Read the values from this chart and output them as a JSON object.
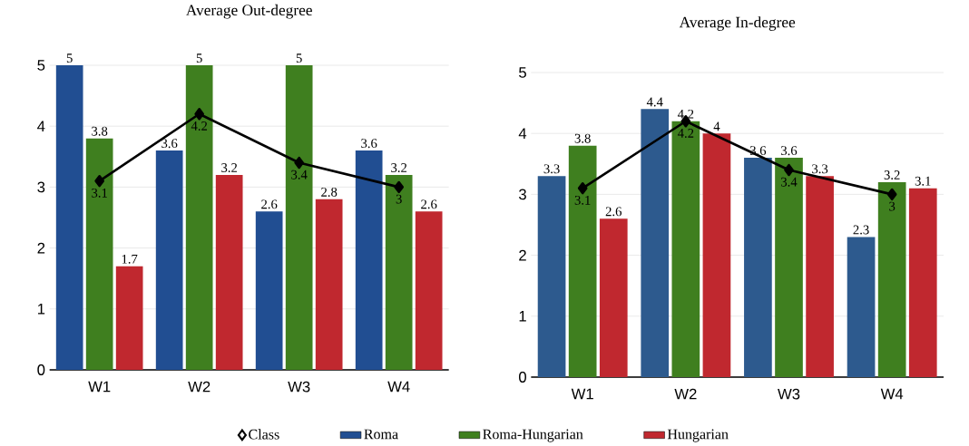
{
  "chart_data": [
    {
      "type": "bar",
      "title": "Average Out-degree",
      "categories": [
        "W1",
        "W2",
        "W3",
        "W4"
      ],
      "series": [
        {
          "name": "Class",
          "type": "line",
          "marker": "diamond",
          "color": "#000000",
          "values": [
            3.1,
            4.2,
            3.4,
            3
          ]
        },
        {
          "name": "Roma",
          "color": "#214e92",
          "values": [
            5,
            3.6,
            2.6,
            3.6
          ]
        },
        {
          "name": "Roma-Hungarian",
          "color": "#3f7f1f",
          "values": [
            3.8,
            5,
            5,
            3.2
          ]
        },
        {
          "name": "Hungarian",
          "color": "#c0282f",
          "values": [
            1.7,
            3.2,
            2.8,
            2.6
          ]
        }
      ],
      "ylim": [
        0,
        5
      ],
      "yticks": [
        0,
        1,
        2,
        3,
        4,
        5
      ],
      "grid": "y",
      "legend": "bottom",
      "data_labels": true
    },
    {
      "type": "bar",
      "title": "Average In-degree",
      "categories": [
        "W1",
        "W2",
        "W3",
        "W4"
      ],
      "series": [
        {
          "type": "line",
          "marker": "diamond",
          "color": "#000000",
          "values": [
            3.1,
            4.2,
            3.4,
            3
          ]
        },
        {
          "color": "#2d5a8e",
          "values": [
            3.3,
            4.4,
            3.6,
            2.3
          ]
        },
        {
          "color": "#3f7f1f",
          "values": [
            3.8,
            4.2,
            3.6,
            3.2
          ]
        },
        {
          "color": "#c0282f",
          "values": [
            2.6,
            4,
            3.3,
            3.1
          ]
        }
      ],
      "ylim": [
        0,
        5
      ],
      "yticks": [
        0,
        1,
        2,
        3,
        4,
        5
      ],
      "grid": "y",
      "data_labels": true
    }
  ]
}
